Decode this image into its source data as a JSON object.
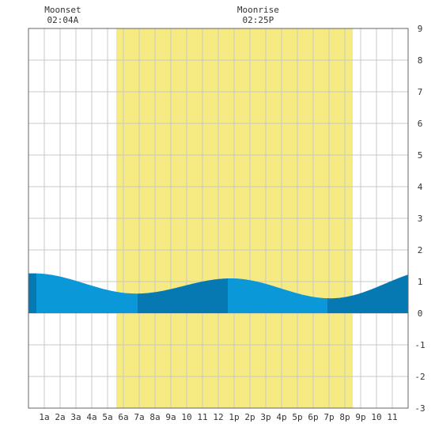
{
  "chart_data": {
    "type": "area",
    "title": "",
    "xlabel": "",
    "ylabel": "",
    "x_tick_labels": [
      "1a",
      "2a",
      "3a",
      "4a",
      "5a",
      "6a",
      "7a",
      "8a",
      "9a",
      "10",
      "11",
      "12",
      "1p",
      "2p",
      "3p",
      "4p",
      "5p",
      "6p",
      "7p",
      "8p",
      "9p",
      "10",
      "11"
    ],
    "xlim_hours": [
      0,
      24
    ],
    "ylim": [
      -3,
      9
    ],
    "y_ticks": [
      -3,
      -2,
      -1,
      0,
      1,
      2,
      3,
      4,
      5,
      6,
      7,
      8,
      9
    ],
    "grid": true,
    "daylight": {
      "start_hour": 5.55,
      "end_hour": 20.5
    },
    "moon_events": [
      {
        "label": "Moonset",
        "time": "02:04A",
        "hour": 2.07
      },
      {
        "label": "Moonrise",
        "time": "02:25P",
        "hour": 14.42
      }
    ],
    "tide_extremes": [
      {
        "hour": 0.3,
        "value": 1.26
      },
      {
        "hour": 6.8,
        "value": 0.62
      },
      {
        "hour": 12.8,
        "value": 1.1
      },
      {
        "hour": 19.1,
        "value": 0.47
      },
      {
        "hour": 26.0,
        "value": 1.4
      }
    ],
    "shade_boundaries_hours": [
      0.5,
      6.9,
      12.6,
      18.9
    ],
    "colors": {
      "daylight": "#f5eb82",
      "tide_light": "#0a98d8",
      "tide_dark": "#0679b2",
      "grid": "#c8c8c8",
      "border": "#666666"
    }
  }
}
